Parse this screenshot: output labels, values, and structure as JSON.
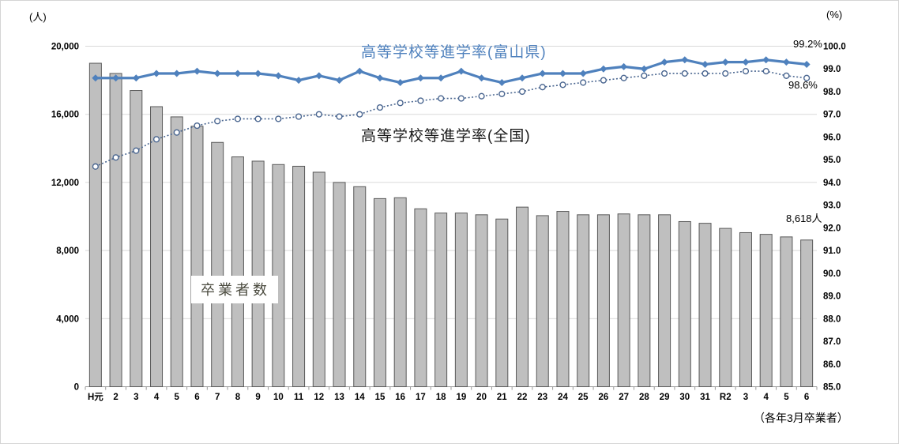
{
  "units": {
    "left": "(人)",
    "right": "(%)"
  },
  "series_labels": {
    "toyama": "高等学校等進学率(富山県)",
    "national": "高等学校等進学率(全国)",
    "graduates": "卒業者数"
  },
  "annotations": {
    "toyama_last": "99.2%",
    "national_last": "98.6%",
    "graduates_last": "8,618人"
  },
  "footnote": "（各年3月卒業者）",
  "chart_data": {
    "type": "bar",
    "subtype": "combo-bar-line-dual-axis",
    "title": "",
    "xlabel": "（各年3月卒業者）",
    "categories": [
      "H元",
      "2",
      "3",
      "4",
      "5",
      "6",
      "7",
      "8",
      "9",
      "10",
      "11",
      "12",
      "13",
      "14",
      "15",
      "16",
      "17",
      "18",
      "19",
      "20",
      "21",
      "22",
      "23",
      "24",
      "25",
      "26",
      "27",
      "28",
      "29",
      "30",
      "31",
      "R2",
      "3",
      "4",
      "5",
      "6"
    ],
    "series": [
      {
        "name": "卒業者数",
        "type": "bar",
        "axis": "left",
        "unit": "人",
        "color": "#bfbfbf",
        "border_color": "#595959",
        "values": [
          19000,
          18400,
          17400,
          16450,
          15850,
          15300,
          14350,
          13500,
          13250,
          13050,
          12950,
          12600,
          12000,
          11750,
          11050,
          11100,
          10450,
          10200,
          10200,
          10100,
          9850,
          10550,
          10050,
          10300,
          10100,
          10100,
          10150,
          10100,
          10100,
          9700,
          9600,
          9300,
          9050,
          8950,
          8800,
          8618
        ]
      },
      {
        "name": "高等学校等進学率(富山県)",
        "type": "line",
        "axis": "right",
        "unit": "%",
        "color": "#4f81bd",
        "marker": "diamond",
        "values": [
          98.6,
          98.6,
          98.6,
          98.8,
          98.8,
          98.9,
          98.8,
          98.8,
          98.8,
          98.7,
          98.5,
          98.7,
          98.5,
          98.9,
          98.6,
          98.4,
          98.6,
          98.6,
          98.9,
          98.6,
          98.4,
          98.6,
          98.8,
          98.8,
          98.8,
          99.0,
          99.1,
          99.0,
          99.3,
          99.4,
          99.2,
          99.3,
          99.3,
          99.4,
          99.3,
          99.2
        ]
      },
      {
        "name": "高等学校等進学率(全国)",
        "type": "line-dotted",
        "axis": "right",
        "unit": "%",
        "color": "#4a6690",
        "marker": "circle-open",
        "values": [
          94.7,
          95.1,
          95.4,
          95.9,
          96.2,
          96.5,
          96.7,
          96.8,
          96.8,
          96.8,
          96.9,
          97.0,
          96.9,
          97.0,
          97.3,
          97.5,
          97.6,
          97.7,
          97.7,
          97.8,
          97.9,
          98.0,
          98.2,
          98.3,
          98.4,
          98.5,
          98.6,
          98.7,
          98.8,
          98.8,
          98.8,
          98.8,
          98.9,
          98.9,
          98.7,
          98.6
        ]
      }
    ],
    "left_axis": {
      "unit": "(人)",
      "min": 0,
      "max": 20000,
      "tick_values": [
        20000,
        16000,
        12000,
        8000,
        4000,
        0
      ],
      "tick_labels": [
        "20,000",
        "16,000",
        "12,000",
        "8,000",
        "4,000",
        "0"
      ]
    },
    "right_axis": {
      "unit": "(%)",
      "min": 85.0,
      "max": 100.0,
      "tick_values": [
        100,
        99,
        98,
        97,
        96,
        95,
        94,
        93,
        92,
        91,
        90,
        89,
        88,
        87,
        86,
        85
      ],
      "tick_labels": [
        "100.0",
        "99.0",
        "98.0",
        "97.0",
        "96.0",
        "95.0",
        "94.0",
        "93.0",
        "92.0",
        "91.0",
        "90.0",
        "89.0",
        "88.0",
        "87.0",
        "86.0",
        "85.0"
      ]
    },
    "grid": {
      "color": "#d9d9d9",
      "axis_color": "#999999",
      "gridlines_at_left_values": [
        0,
        4000,
        8000,
        12000,
        16000,
        20000
      ]
    },
    "legend_position": "none",
    "point_annotations": [
      {
        "series": "高等学校等進学率(富山県)",
        "category": "6",
        "text": "99.2%"
      },
      {
        "series": "高等学校等進学率(全国)",
        "category": "6",
        "text": "98.6%"
      },
      {
        "series": "卒業者数",
        "category": "6",
        "text": "8,618人"
      }
    ]
  }
}
